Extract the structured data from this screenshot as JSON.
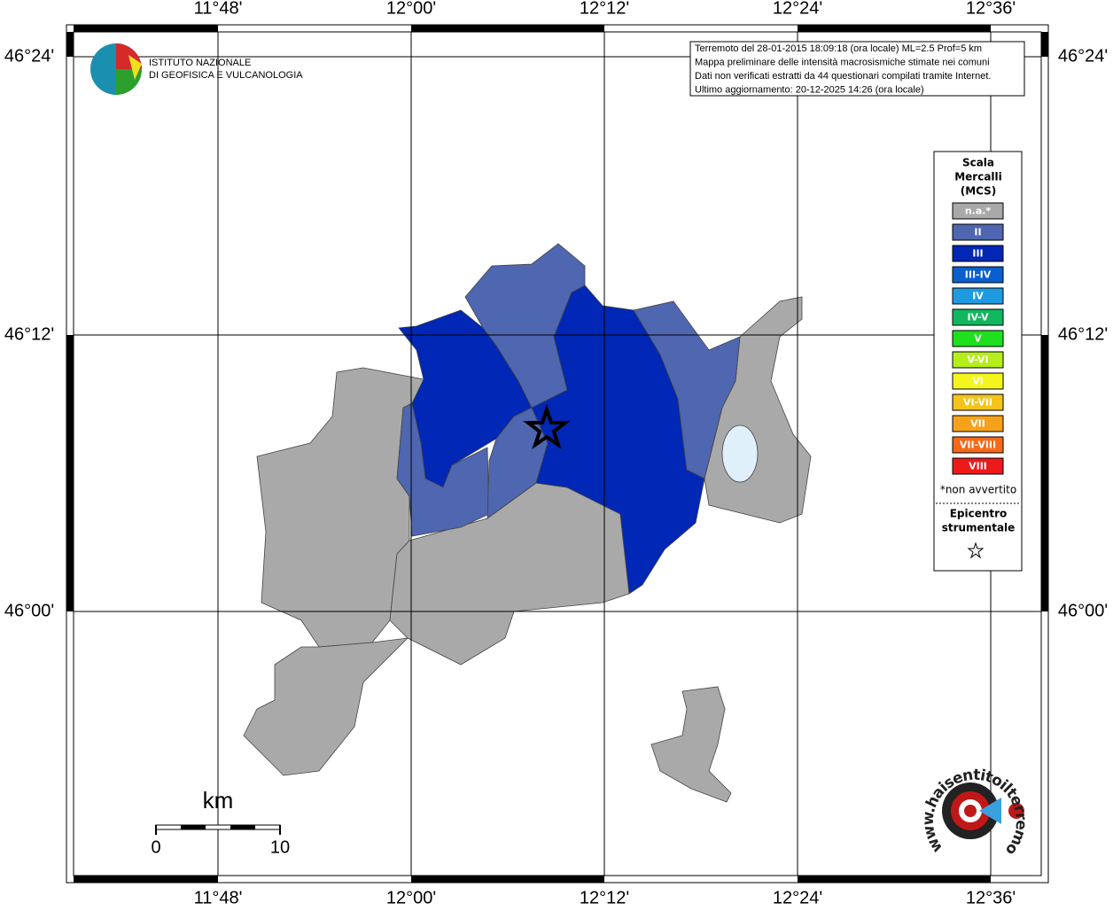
{
  "header": {
    "institute": [
      "ISTITUTO NAZIONALE",
      "DI GEOFISICA E VULCANOLOGIA"
    ],
    "info": [
      "Terremoto del 28-01-2015 18:09:18 (ora locale) ML=2.5 Prof=5 km",
      "Mappa preliminare delle intensità macrosismiche stimate nei comuni",
      "Dati non verificati estratti da 44 questionari compilati tramite Internet.",
      "Ultimo aggiornamento: 20-12-2025 14:26 (ora locale)"
    ]
  },
  "axes": {
    "lon_labels": [
      "11°48'",
      "12°00'",
      "12°12'",
      "12°24'",
      "12°36'"
    ],
    "lat_labels": [
      "46°24'",
      "46°12'",
      "46°00'"
    ]
  },
  "legend": {
    "title": [
      "Scala",
      "Mercalli",
      "(MCS)"
    ],
    "items": [
      {
        "label": "n.a.*",
        "color": "#a9a9a9"
      },
      {
        "label": "II",
        "color": "#4f66b0"
      },
      {
        "label": "III",
        "color": "#0027b5"
      },
      {
        "label": "III-IV",
        "color": "#0a5fd0"
      },
      {
        "label": "IV",
        "color": "#1e9be0"
      },
      {
        "label": "IV-V",
        "color": "#0fb85f"
      },
      {
        "label": "V",
        "color": "#1ee01e"
      },
      {
        "label": "V-VI",
        "color": "#b5ee1a"
      },
      {
        "label": "VI",
        "color": "#f5f51e"
      },
      {
        "label": "VI-VII",
        "color": "#f5c31a"
      },
      {
        "label": "VII",
        "color": "#f5a21a"
      },
      {
        "label": "VII-VIII",
        "color": "#f5691a"
      },
      {
        "label": "VIII",
        "color": "#ee1a1a"
      }
    ],
    "note": "*non avvertito",
    "epicenter": [
      "Epicentro",
      "strumentale"
    ]
  },
  "scale": {
    "unit": "km",
    "labels": [
      "0",
      "10"
    ]
  },
  "watermark": "www.haisentitoilterremoto.it"
}
